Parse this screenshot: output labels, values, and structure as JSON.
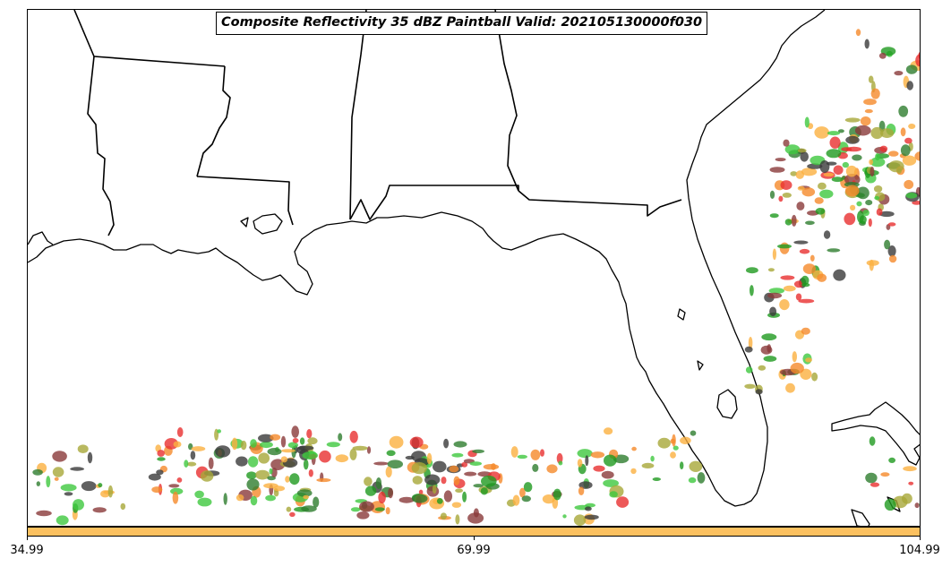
{
  "map": {
    "title": "Composite Reflectivity 35 dBZ Paintball Valid: 202105130000f030",
    "layers": [
      "state-borders",
      "coastline",
      "paintball-reflectivity-cells"
    ],
    "region": "Southeastern United States and Gulf of Mexico",
    "paintball_colors": [
      "#e83030",
      "#f58a2a",
      "#fbb040",
      "#3ec83e",
      "#1f9a1f",
      "#a8a838",
      "#3a3a3a",
      "#8a3a3a",
      "#2e7d2e"
    ]
  },
  "colorbar": {
    "color": "#fcc160",
    "ticks": [
      "34.99",
      "69.99",
      "104.99"
    ]
  }
}
